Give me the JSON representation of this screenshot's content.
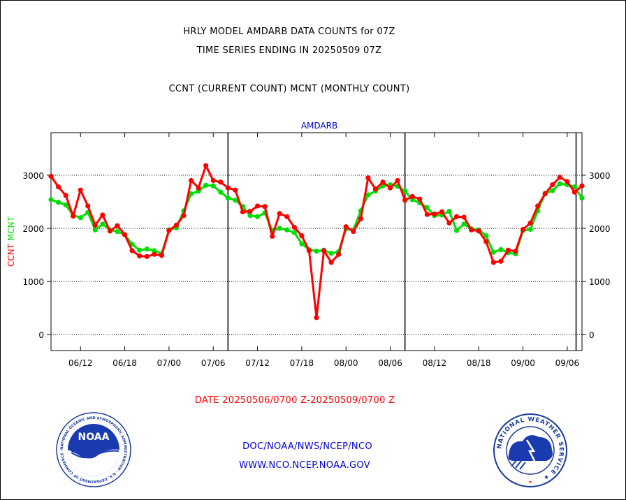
{
  "header": {
    "title_line1": "HRLY MODEL AMDARB DATA COUNTS for 07Z",
    "title_line2": "TIME SERIES ENDING IN 20250509 07Z",
    "subtitle": "CCNT (CURRENT COUNT) MCNT (MONTHLY COUNT)"
  },
  "footer": {
    "date_range": "DATE 20250506/0700 Z-20250509/0700 Z",
    "org_line": "DOC/NOAA/NWS/NCEP/NCO",
    "url_line": "WWW.NCO.NCEP.NOAA.GOV"
  },
  "logos": {
    "noaa_text": "NOAA",
    "noaa_ring_text": "NATIONAL OCEANIC AND ATMOSPHERIC ADMINISTRATION · U.S. DEPARTMENT OF COMMERCE ·",
    "nws_ring_text": "NATIONAL WEATHER SERVICE ★"
  },
  "colors": {
    "ccnt": "#ff0000",
    "mcnt": "#00dd00",
    "title_blue": "#0000cc",
    "date_red": "#ff0000",
    "footer_blue": "#0000cc"
  },
  "chart_data": {
    "type": "line",
    "title": "AMDARB",
    "ylabel_ccnt": "CCNT",
    "ylabel_mcnt": "MCNT",
    "ylim": [
      -300,
      3800
    ],
    "yticks": [
      0,
      1000,
      2000,
      3000
    ],
    "ytick_labels": [
      "0",
      "1000",
      "2000",
      "3000"
    ],
    "xlim": [
      0,
      72
    ],
    "xticks": [
      {
        "t": 4,
        "label": "06/12"
      },
      {
        "t": 10,
        "label": "06/18"
      },
      {
        "t": 16,
        "label": "07/00"
      },
      {
        "t": 22,
        "label": "07/06"
      },
      {
        "t": 28,
        "label": "07/12"
      },
      {
        "t": 34,
        "label": "07/18"
      },
      {
        "t": 40,
        "label": "08/00"
      },
      {
        "t": 46,
        "label": "08/06"
      },
      {
        "t": 52,
        "label": "08/12"
      },
      {
        "t": 58,
        "label": "08/18"
      },
      {
        "t": 64,
        "label": "09/00"
      },
      {
        "t": 70,
        "label": "09/06"
      }
    ],
    "day_lines": [
      24,
      48,
      71.2
    ],
    "grid": true,
    "series": [
      {
        "name": "CCNT",
        "color": "#ff0000",
        "x": [
          0,
          1,
          2,
          3,
          4,
          5,
          6,
          7,
          8,
          9,
          10,
          11,
          12,
          13,
          14,
          15,
          16,
          17,
          18,
          19,
          20,
          21,
          22,
          23,
          24,
          25,
          26,
          27,
          28,
          29,
          30,
          31,
          32,
          33,
          34,
          35,
          36,
          37,
          38,
          39,
          40,
          41,
          42,
          43,
          44,
          45,
          46,
          47,
          48,
          49,
          50,
          51,
          52,
          53,
          54,
          55,
          56,
          57,
          58,
          59,
          60,
          61,
          62,
          63,
          64,
          65,
          66,
          67,
          68,
          69,
          70,
          71,
          72
        ],
        "values": [
          2980,
          2780,
          2620,
          2230,
          2720,
          2420,
          2060,
          2250,
          1950,
          2050,
          1880,
          1580,
          1480,
          1470,
          1510,
          1490,
          1960,
          2060,
          2240,
          2900,
          2760,
          3180,
          2900,
          2870,
          2760,
          2720,
          2310,
          2320,
          2420,
          2410,
          1850,
          2280,
          2220,
          2020,
          1860,
          1580,
          320,
          1580,
          1360,
          1510,
          2030,
          1940,
          2180,
          2950,
          2740,
          2870,
          2760,
          2900,
          2530,
          2600,
          2550,
          2260,
          2270,
          2310,
          2100,
          2220,
          2210,
          1970,
          1950,
          1750,
          1360,
          1380,
          1590,
          1570,
          1980,
          2100,
          2420,
          2650,
          2820,
          2960,
          2880,
          2680,
          2800
        ]
      },
      {
        "name": "MCNT",
        "color": "#00dd00",
        "x": [
          0,
          1,
          2,
          3,
          4,
          5,
          6,
          7,
          8,
          9,
          10,
          11,
          12,
          13,
          14,
          15,
          16,
          17,
          18,
          19,
          20,
          21,
          22,
          23,
          24,
          25,
          26,
          27,
          28,
          29,
          30,
          31,
          32,
          33,
          34,
          35,
          36,
          37,
          38,
          39,
          40,
          41,
          42,
          43,
          44,
          45,
          46,
          47,
          48,
          49,
          50,
          51,
          52,
          53,
          54,
          55,
          56,
          57,
          58,
          59,
          60,
          61,
          62,
          63,
          64,
          65,
          66,
          67,
          68,
          69,
          70,
          71,
          72
        ],
        "values": [
          2540,
          2490,
          2440,
          2250,
          2200,
          2300,
          1970,
          2080,
          1970,
          1940,
          1880,
          1700,
          1590,
          1610,
          1580,
          1520,
          1970,
          2010,
          2330,
          2650,
          2700,
          2810,
          2800,
          2680,
          2570,
          2530,
          2410,
          2240,
          2220,
          2290,
          1960,
          2000,
          1970,
          1920,
          1710,
          1600,
          1570,
          1590,
          1530,
          1560,
          1990,
          1970,
          2330,
          2630,
          2700,
          2800,
          2820,
          2790,
          2700,
          2540,
          2480,
          2390,
          2240,
          2250,
          2320,
          1960,
          2080,
          1990,
          1970,
          1860,
          1550,
          1600,
          1540,
          1520,
          1960,
          1980,
          2330,
          2660,
          2710,
          2840,
          2820,
          2780,
          2570
        ]
      }
    ],
    "right_axis": true
  }
}
